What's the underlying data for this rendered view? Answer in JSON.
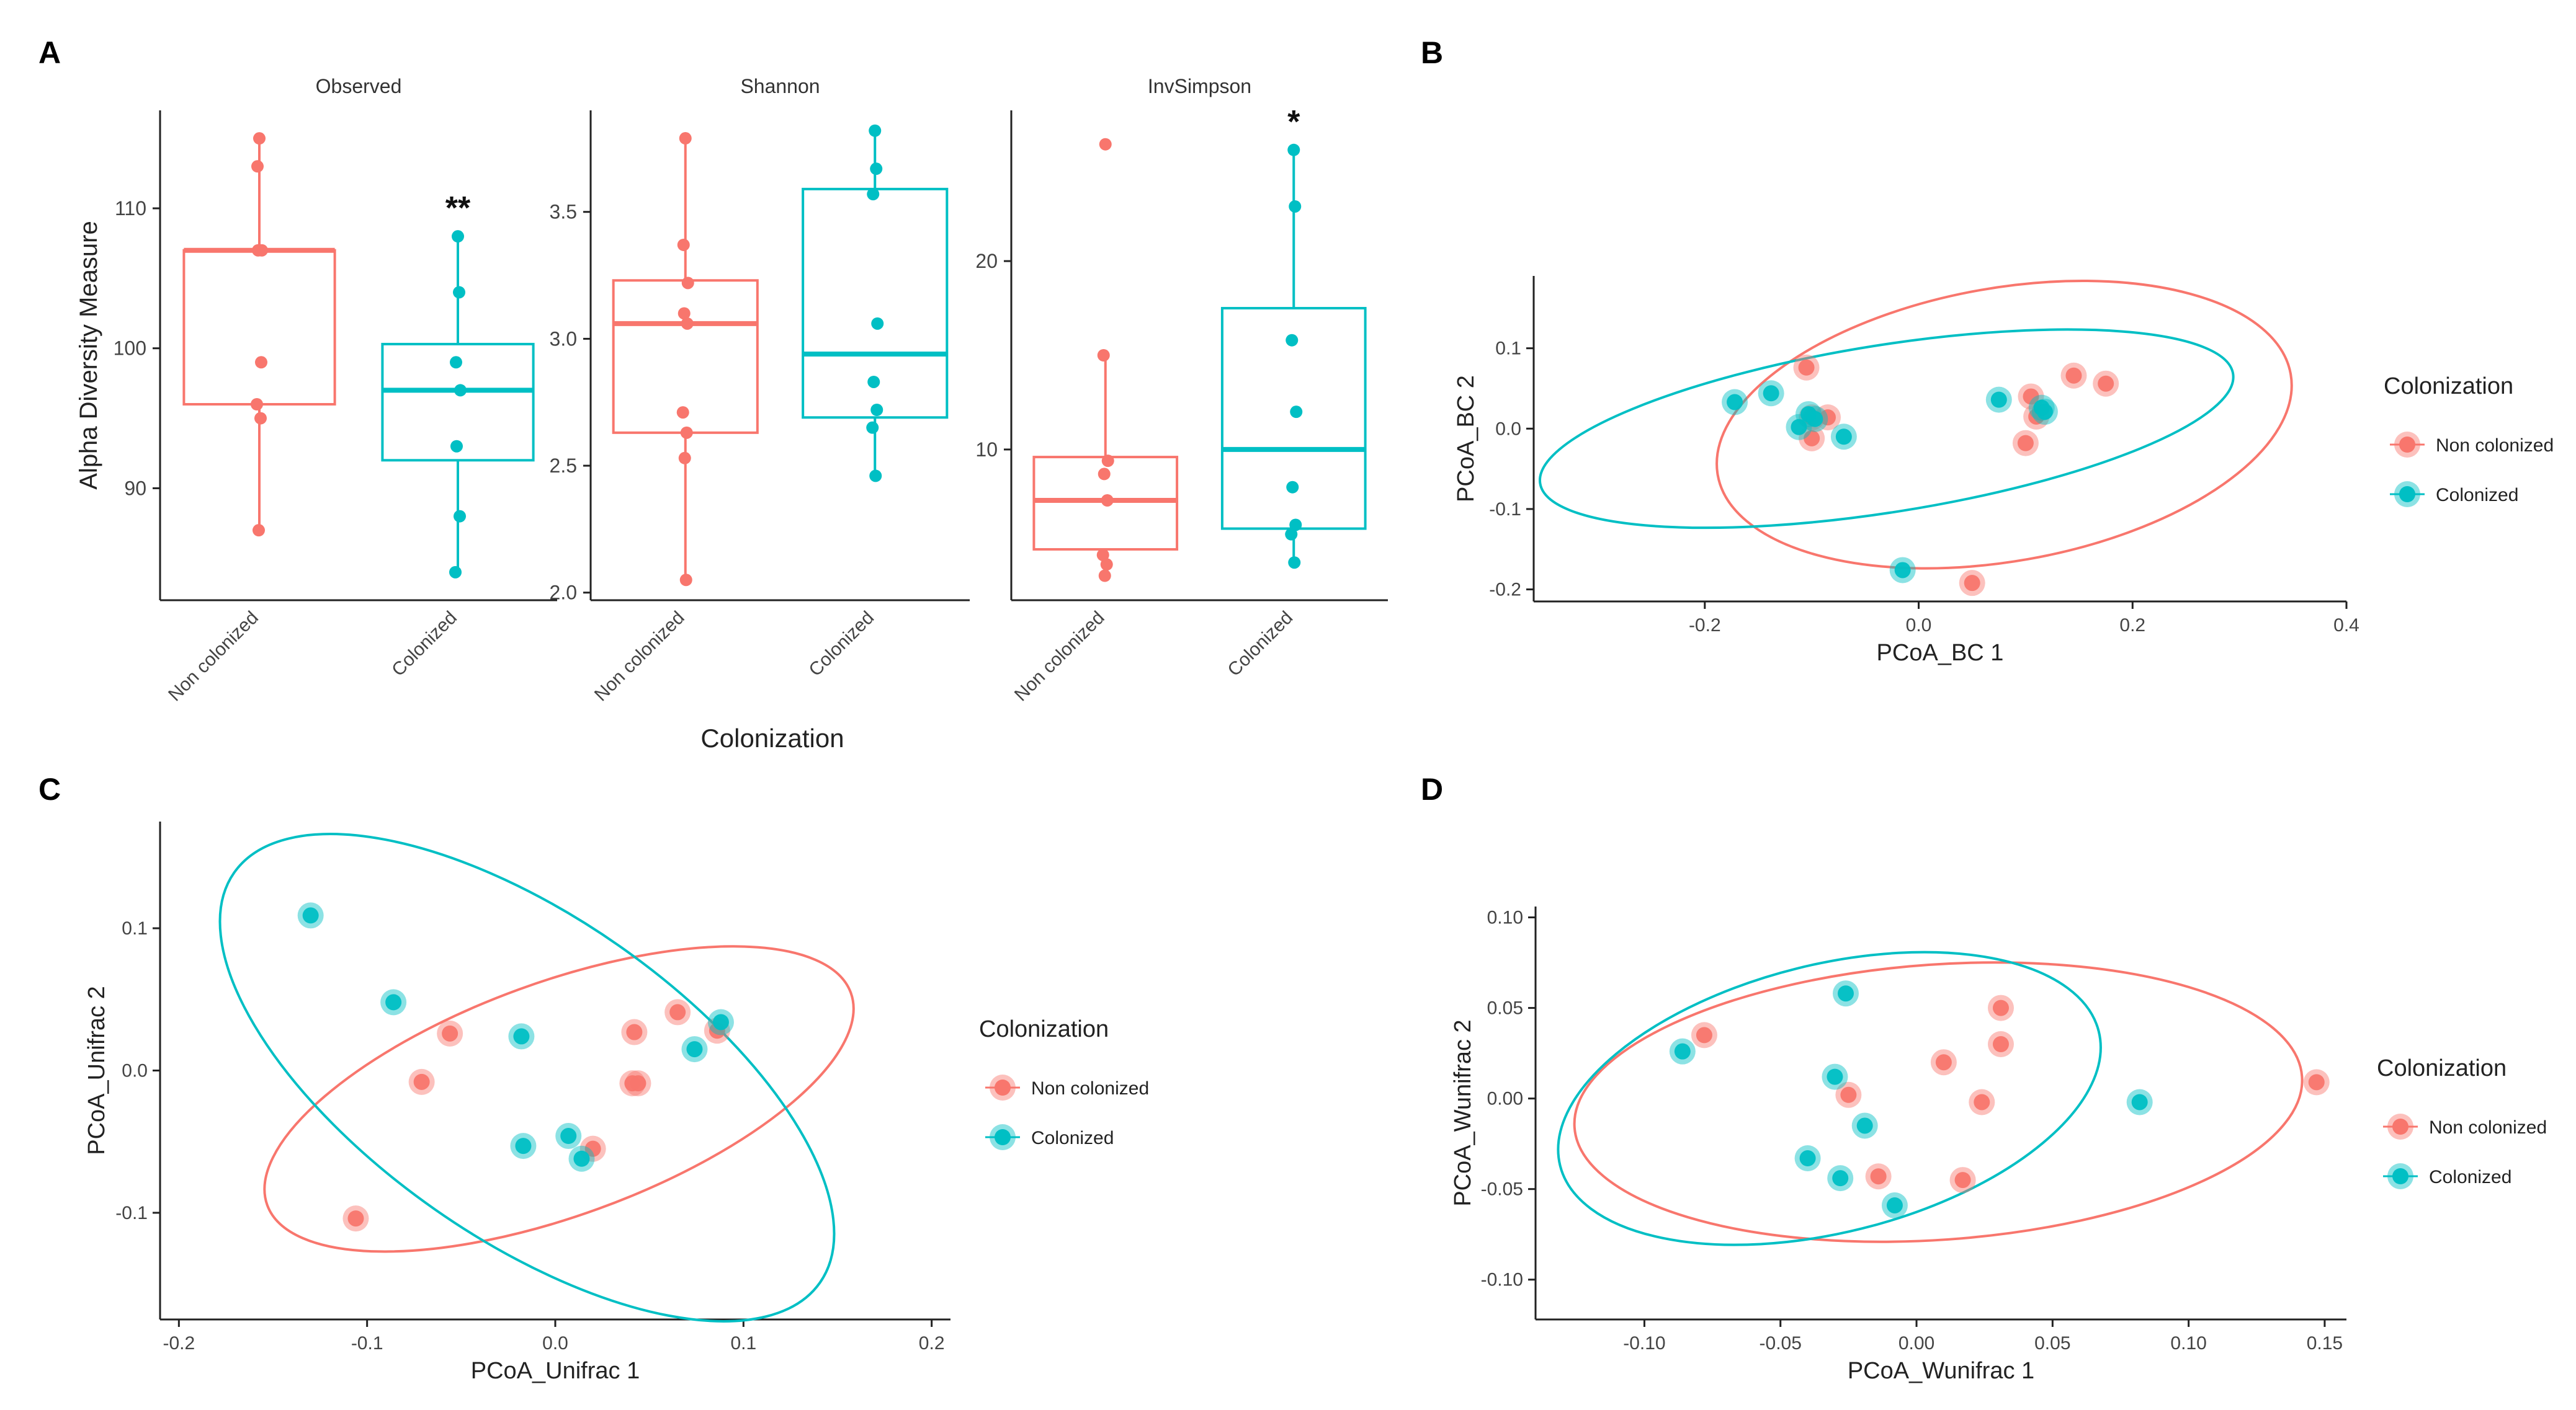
{
  "figure": {
    "panel_labels": [
      "A",
      "B",
      "C",
      "D"
    ],
    "colors": {
      "non_colonized": "#F8766D",
      "colonized": "#00BFC4",
      "axis": "#222222",
      "text": "#222222"
    }
  },
  "chart_data": [
    {
      "panel": "A",
      "type": "box",
      "ylabel": "Alpha Diversity Measure",
      "xlabel": "Colonization",
      "categories": [
        "Non colonized",
        "Colonized"
      ],
      "significance": [
        "**",
        "",
        "*"
      ],
      "facets": [
        {
          "title": "Observed",
          "ylim": [
            82,
            117
          ],
          "yticks": [
            90,
            100,
            110
          ],
          "ytick_labels": [
            "90",
            "100",
            "110"
          ],
          "boxes": [
            {
              "group": "Non colonized",
              "q1": 96,
              "median": 107,
              "q3": 107,
              "whisker_low": 87,
              "whisker_high": 115
            },
            {
              "group": "Colonized",
              "q1": 92,
              "median": 97,
              "q3": 100.3,
              "whisker_low": 84,
              "whisker_high": 108
            }
          ],
          "points": [
            {
              "group": "Non colonized",
              "values": [
                115,
                113,
                107,
                107,
                99,
                96,
                95,
                87
              ]
            },
            {
              "group": "Colonized",
              "values": [
                108,
                104,
                99,
                97,
                93,
                88,
                84
              ]
            }
          ]
        },
        {
          "title": "Shannon",
          "ylim": [
            1.97,
            3.9
          ],
          "yticks": [
            2.0,
            2.5,
            3.0,
            3.5
          ],
          "ytick_labels": [
            "2.0",
            "2.5",
            "3.0",
            "3.5"
          ],
          "boxes": [
            {
              "group": "Non colonized",
              "q1": 2.63,
              "median": 3.06,
              "q3": 3.23,
              "whisker_low": 2.05,
              "whisker_high": 3.79
            },
            {
              "group": "Colonized",
              "q1": 2.69,
              "median": 2.94,
              "q3": 3.59,
              "whisker_low": 2.46,
              "whisker_high": 3.82
            }
          ],
          "points": [
            {
              "group": "Non colonized",
              "values": [
                3.79,
                3.37,
                3.22,
                3.1,
                3.06,
                2.71,
                2.63,
                2.53,
                2.05
              ]
            },
            {
              "group": "Colonized",
              "values": [
                3.82,
                3.67,
                3.57,
                3.06,
                2.83,
                2.72,
                2.65,
                2.46
              ]
            }
          ]
        },
        {
          "title": "InvSimpson",
          "ylim": [
            2,
            28
          ],
          "yticks": [
            10,
            20
          ],
          "ytick_labels": [
            "10",
            "20"
          ],
          "boxes": [
            {
              "group": "Non colonized",
              "q1": 4.7,
              "median": 7.3,
              "q3": 9.6,
              "whisker_low": 3.4,
              "whisker_high": 15
            },
            {
              "group": "Colonized",
              "q1": 5.8,
              "median": 10,
              "q3": 17.5,
              "whisker_low": 4,
              "whisker_high": 25.9
            }
          ],
          "points": [
            {
              "group": "Non colonized",
              "values": [
                26.2,
                15,
                9.4,
                8.7,
                7.3,
                4.4,
                3.9,
                3.3
              ]
            },
            {
              "group": "Colonized",
              "values": [
                25.9,
                22.9,
                15.8,
                12,
                8,
                6,
                5.5,
                4
              ]
            }
          ]
        }
      ]
    },
    {
      "panel": "B",
      "type": "scatter",
      "xlabel": "PCoA_BC 1",
      "ylabel": "PCoA_BC 2",
      "xlim": [
        -0.36,
        0.4
      ],
      "ylim": [
        -0.215,
        0.19
      ],
      "xticks": [
        -0.2,
        0.0,
        0.2,
        0.4
      ],
      "xtick_labels": [
        "-0.2",
        "0.0",
        "0.2",
        "0.4"
      ],
      "yticks": [
        -0.2,
        -0.1,
        0.0,
        0.1
      ],
      "ytick_labels": [
        "-0.2",
        "-0.1",
        "0.0",
        "0.1"
      ],
      "legend": {
        "title": "Colonization",
        "entries": [
          "Non colonized",
          "Colonized"
        ],
        "position": "right"
      },
      "series": [
        {
          "name": "Non colonized",
          "points": [
            [
              -0.105,
              0.076
            ],
            [
              -0.085,
              0.014
            ],
            [
              -0.1,
              0.014
            ],
            [
              -0.1,
              -0.012
            ],
            [
              0.105,
              0.04
            ],
            [
              0.11,
              0.015
            ],
            [
              0.1,
              -0.018
            ],
            [
              0.145,
              0.066
            ],
            [
              0.175,
              0.056
            ],
            [
              0.05,
              -0.192
            ]
          ]
        },
        {
          "name": "Colonized",
          "points": [
            [
              -0.172,
              0.033
            ],
            [
              -0.138,
              0.044
            ],
            [
              -0.112,
              0.002
            ],
            [
              -0.103,
              0.018
            ],
            [
              -0.097,
              0.012
            ],
            [
              -0.07,
              -0.01
            ],
            [
              0.075,
              0.036
            ],
            [
              0.115,
              0.026
            ],
            [
              0.118,
              0.021
            ],
            [
              -0.015,
              -0.176
            ]
          ]
        }
      ],
      "ellipses": [
        {
          "name": "Non colonized",
          "cx": 0.08,
          "cy": 0.005,
          "rx": 0.272,
          "ry": 0.17,
          "angle": -10
        },
        {
          "name": "Colonized",
          "cx": -0.03,
          "cy": 0.0,
          "rx": 0.328,
          "ry": 0.104,
          "angle": -9
        }
      ]
    },
    {
      "panel": "C",
      "type": "scatter",
      "xlabel": "PCoA_Unifrac 1",
      "ylabel": "PCoA_Unifrac 2",
      "xlim": [
        -0.21,
        0.21
      ],
      "ylim": [
        -0.175,
        0.175
      ],
      "xticks": [
        -0.2,
        -0.1,
        0.0,
        0.1,
        0.2
      ],
      "xtick_labels": [
        "-0.2",
        "-0.1",
        "0.0",
        "0.1",
        "0.2"
      ],
      "yticks": [
        -0.1,
        0.0,
        0.1
      ],
      "ytick_labels": [
        "-0.1",
        "0.0",
        "0.1"
      ],
      "legend": {
        "title": "Colonization",
        "entries": [
          "Non colonized",
          "Colonized"
        ],
        "position": "right"
      },
      "series": [
        {
          "name": "Non colonized",
          "points": [
            [
              -0.106,
              -0.104
            ],
            [
              -0.071,
              -0.008
            ],
            [
              -0.056,
              0.026
            ],
            [
              0.02,
              -0.055
            ],
            [
              0.041,
              -0.009
            ],
            [
              0.044,
              -0.009
            ],
            [
              0.042,
              0.027
            ],
            [
              0.065,
              0.041
            ],
            [
              0.086,
              0.028
            ]
          ]
        },
        {
          "name": "Colonized",
          "points": [
            [
              -0.13,
              0.109
            ],
            [
              -0.086,
              0.048
            ],
            [
              -0.018,
              0.024
            ],
            [
              -0.017,
              -0.053
            ],
            [
              0.007,
              -0.046
            ],
            [
              0.014,
              -0.062
            ],
            [
              0.074,
              0.015
            ],
            [
              0.088,
              0.034
            ]
          ]
        }
      ],
      "ellipses": [
        {
          "name": "Non colonized",
          "cx": 0.002,
          "cy": -0.02,
          "rx": 0.165,
          "ry": 0.082,
          "angle": -20
        },
        {
          "name": "Colonized",
          "cx": -0.015,
          "cy": -0.005,
          "rx": 0.19,
          "ry": 0.113,
          "angle": 35
        }
      ]
    },
    {
      "panel": "D",
      "type": "scatter",
      "xlabel": "PCoA_Wunifrac 1",
      "ylabel": "PCoA_Wunifrac 2",
      "xlim": [
        -0.14,
        0.158
      ],
      "ylim": [
        -0.122,
        0.106
      ],
      "xticks": [
        -0.1,
        -0.05,
        0.0,
        0.05,
        0.1,
        0.15
      ],
      "xtick_labels": [
        "-0.10",
        "-0.05",
        "0.00",
        "0.05",
        "0.10",
        "0.15"
      ],
      "yticks": [
        -0.1,
        -0.05,
        0.0,
        0.05,
        0.1
      ],
      "ytick_labels": [
        "-0.10",
        "-0.05",
        "0.00",
        "0.05",
        "0.10"
      ],
      "legend": {
        "title": "Colonization",
        "entries": [
          "Non colonized",
          "Colonized"
        ],
        "position": "right"
      },
      "series": [
        {
          "name": "Non colonized",
          "points": [
            [
              -0.078,
              0.035
            ],
            [
              -0.025,
              0.002
            ],
            [
              -0.014,
              -0.043
            ],
            [
              0.01,
              0.02
            ],
            [
              0.017,
              -0.045
            ],
            [
              0.024,
              -0.002
            ],
            [
              0.031,
              0.05
            ],
            [
              0.031,
              0.03
            ],
            [
              0.147,
              0.009
            ]
          ]
        },
        {
          "name": "Colonized",
          "points": [
            [
              -0.086,
              0.026
            ],
            [
              -0.03,
              0.012
            ],
            [
              -0.026,
              0.058
            ],
            [
              -0.04,
              -0.033
            ],
            [
              -0.028,
              -0.044
            ],
            [
              -0.019,
              -0.015
            ],
            [
              -0.008,
              -0.059
            ],
            [
              0.082,
              -0.002
            ]
          ]
        }
      ],
      "ellipses": [
        {
          "name": "Non colonized",
          "cx": 0.008,
          "cy": -0.002,
          "rx": 0.134,
          "ry": 0.076,
          "angle": -4
        },
        {
          "name": "Colonized",
          "cx": -0.032,
          "cy": -0.0,
          "rx": 0.102,
          "ry": 0.074,
          "angle": -14
        }
      ]
    }
  ]
}
